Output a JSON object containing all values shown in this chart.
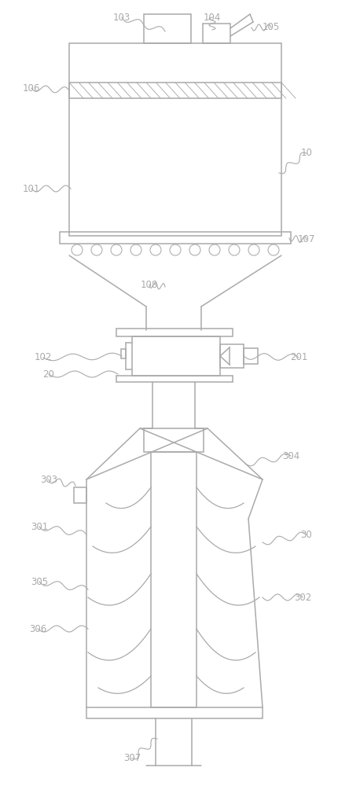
{
  "bg_color": "#ffffff",
  "line_color": "#aaaaaa",
  "text_color": "#aaaaaa",
  "fig_width": 4.44,
  "fig_height": 10.0,
  "dpi": 100,
  "lw": 1.1
}
